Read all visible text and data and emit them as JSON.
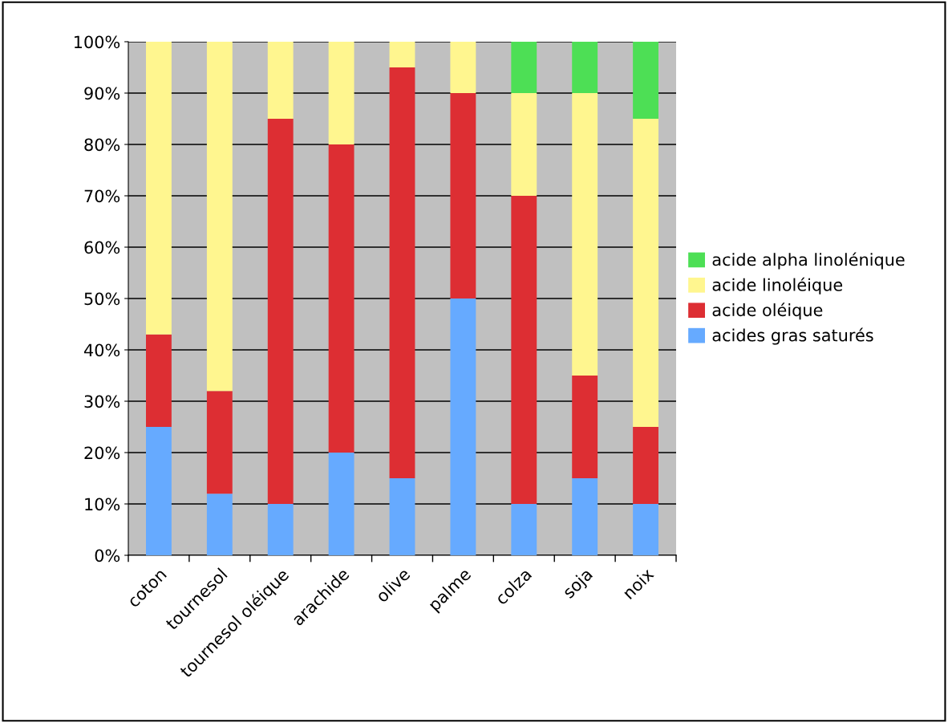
{
  "chart_data": {
    "type": "bar",
    "stacked": true,
    "categories": [
      "coton",
      "tournesol",
      "tournesol oléique",
      "arachide",
      "olive",
      "palme",
      "colza",
      "soja",
      "noix"
    ],
    "series": [
      {
        "name": "acides gras saturés",
        "color": "#66aaff",
        "values": [
          25,
          12,
          10,
          20,
          15,
          50,
          10,
          15,
          10
        ]
      },
      {
        "name": "acide oléique",
        "color": "#dd2e33",
        "values": [
          18,
          20,
          75,
          60,
          80,
          40,
          60,
          20,
          15
        ]
      },
      {
        "name": "acide linoléique",
        "color": "#fff68f",
        "values": [
          57,
          68,
          15,
          20,
          5,
          10,
          20,
          55,
          60
        ]
      },
      {
        "name": "acide alpha linolénique",
        "color": "#4ddf55",
        "values": [
          0,
          0,
          0,
          0,
          0,
          0,
          10,
          10,
          15
        ]
      }
    ],
    "ylim": [
      0,
      100
    ],
    "yticks": [
      {
        "value": 0,
        "label": "0%"
      },
      {
        "value": 10,
        "label": "10%"
      },
      {
        "value": 20,
        "label": "20%"
      },
      {
        "value": 30,
        "label": "30%"
      },
      {
        "value": 40,
        "label": "40%"
      },
      {
        "value": 50,
        "label": "50%"
      },
      {
        "value": 60,
        "label": "60%"
      },
      {
        "value": 70,
        "label": "70%"
      },
      {
        "value": 80,
        "label": "80%"
      },
      {
        "value": 90,
        "label": "90%"
      },
      {
        "value": 100,
        "label": "100%"
      }
    ],
    "grid": "y",
    "legend": "right"
  }
}
